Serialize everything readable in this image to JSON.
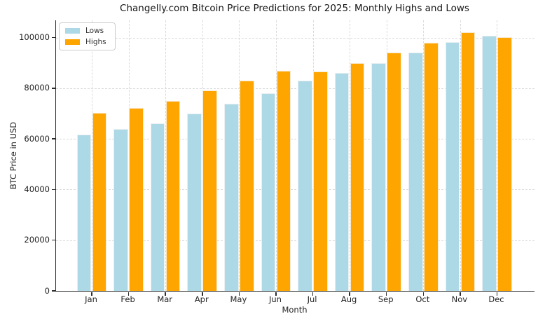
{
  "title": "Changelly.com Bitcoin Price Predictions for 2025: Monthly Highs and Lows",
  "chart_data": {
    "type": "bar",
    "categories": [
      "Jan",
      "Feb",
      "Mar",
      "Apr",
      "May",
      "Jun",
      "Jul",
      "Aug",
      "Sep",
      "Oct",
      "Nov",
      "Dec"
    ],
    "series": [
      {
        "name": "Lows",
        "color": "#ADD8E6",
        "values": [
          61700,
          64000,
          66000,
          70000,
          74000,
          78000,
          82900,
          86000,
          90000,
          94000,
          98300,
          100600
        ]
      },
      {
        "name": "Highs",
        "color": "#FFA500",
        "values": [
          70400,
          72100,
          75000,
          79000,
          83000,
          87000,
          86600,
          90000,
          94000,
          98000,
          102000,
          100100
        ]
      }
    ],
    "xlabel": "Month",
    "ylabel": "BTC Price in USD",
    "yticks": [
      0,
      20000,
      40000,
      60000,
      80000,
      100000
    ],
    "ylim": [
      0,
      106800
    ],
    "grid": "horizontal and vertical, dashed, light gray",
    "legend_position": "upper left",
    "background": "#ffffff"
  }
}
